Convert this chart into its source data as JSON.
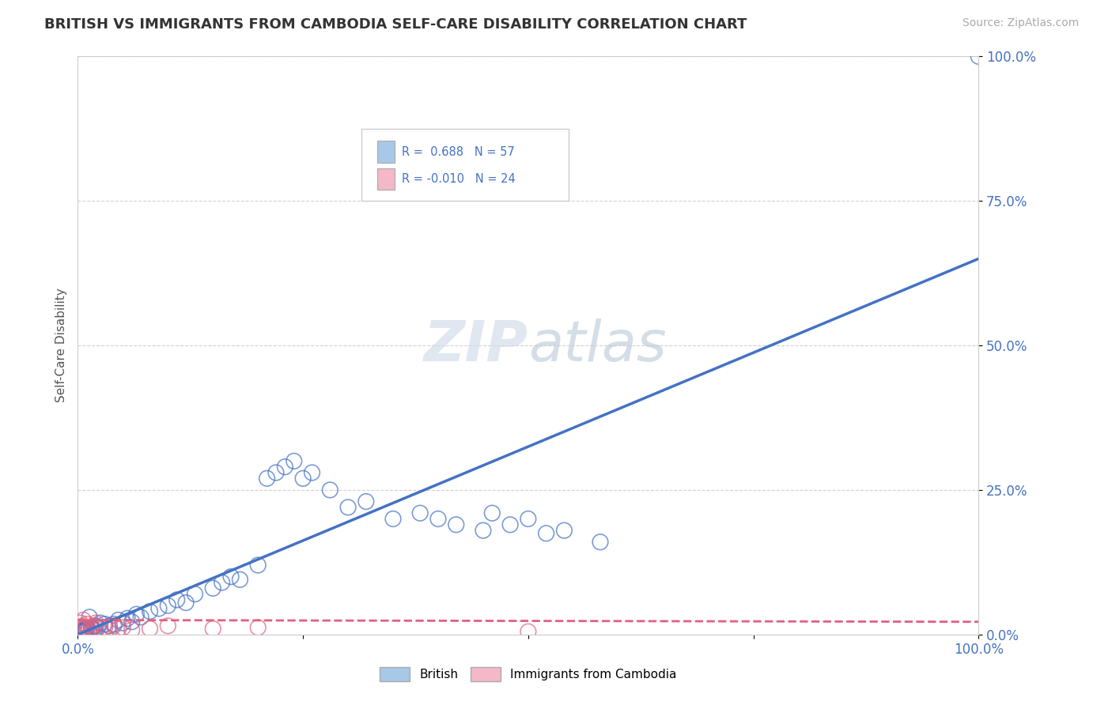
{
  "title": "BRITISH VS IMMIGRANTS FROM CAMBODIA SELF-CARE DISABILITY CORRELATION CHART",
  "source": "Source: ZipAtlas.com",
  "ylabel": "Self-Care Disability",
  "xlim": [
    0,
    1.0
  ],
  "ylim": [
    0,
    1.0
  ],
  "ytick_positions": [
    0.0,
    0.25,
    0.5,
    0.75,
    1.0
  ],
  "ytick_labels": [
    "0.0%",
    "25.0%",
    "50.0%",
    "75.0%",
    "100.0%"
  ],
  "xtick_labels_ends": [
    "0.0%",
    "100.0%"
  ],
  "blue_R": 0.688,
  "blue_N": 57,
  "pink_R": -0.01,
  "pink_N": 24,
  "blue_color": "#a8c8e8",
  "pink_color": "#f4b8c8",
  "blue_line_color": "#4472c4",
  "pink_line_color": "#e06080",
  "legend_label_blue": "British",
  "legend_label_pink": "Immigrants from Cambodia",
  "blue_line_x0": 0.0,
  "blue_line_y0": 0.0,
  "blue_line_x1": 1.0,
  "blue_line_y1": 0.65,
  "pink_line_x0": 0.0,
  "pink_line_y0": 0.025,
  "pink_line_x1": 1.0,
  "pink_line_y1": 0.022,
  "blue_x": [
    0.003,
    0.004,
    0.005,
    0.006,
    0.007,
    0.008,
    0.009,
    0.01,
    0.012,
    0.013,
    0.015,
    0.016,
    0.018,
    0.02,
    0.022,
    0.025,
    0.03,
    0.035,
    0.04,
    0.045,
    0.05,
    0.055,
    0.06,
    0.065,
    0.07,
    0.08,
    0.09,
    0.1,
    0.11,
    0.12,
    0.13,
    0.15,
    0.16,
    0.17,
    0.18,
    0.2,
    0.21,
    0.22,
    0.23,
    0.24,
    0.25,
    0.26,
    0.28,
    0.3,
    0.32,
    0.35,
    0.38,
    0.4,
    0.42,
    0.45,
    0.46,
    0.48,
    0.5,
    0.52,
    0.54,
    0.58,
    1.0
  ],
  "blue_y": [
    0.005,
    0.004,
    0.006,
    0.007,
    0.005,
    0.008,
    0.006,
    0.01,
    0.008,
    0.03,
    0.012,
    0.01,
    0.008,
    0.015,
    0.012,
    0.02,
    0.018,
    0.015,
    0.018,
    0.025,
    0.02,
    0.028,
    0.022,
    0.035,
    0.03,
    0.04,
    0.045,
    0.05,
    0.06,
    0.055,
    0.07,
    0.08,
    0.09,
    0.1,
    0.095,
    0.12,
    0.27,
    0.28,
    0.29,
    0.3,
    0.27,
    0.28,
    0.25,
    0.22,
    0.23,
    0.2,
    0.21,
    0.2,
    0.19,
    0.18,
    0.21,
    0.19,
    0.2,
    0.175,
    0.18,
    0.16,
    1.0
  ],
  "pink_x": [
    0.002,
    0.003,
    0.004,
    0.005,
    0.006,
    0.007,
    0.008,
    0.01,
    0.012,
    0.015,
    0.018,
    0.02,
    0.025,
    0.03,
    0.035,
    0.04,
    0.045,
    0.05,
    0.06,
    0.08,
    0.1,
    0.15,
    0.2,
    0.5
  ],
  "pink_y": [
    0.01,
    0.02,
    0.008,
    0.015,
    0.025,
    0.01,
    0.012,
    0.018,
    0.008,
    0.01,
    0.015,
    0.02,
    0.01,
    0.012,
    0.008,
    0.015,
    0.01,
    0.012,
    0.008,
    0.01,
    0.015,
    0.01,
    0.012,
    0.005
  ]
}
